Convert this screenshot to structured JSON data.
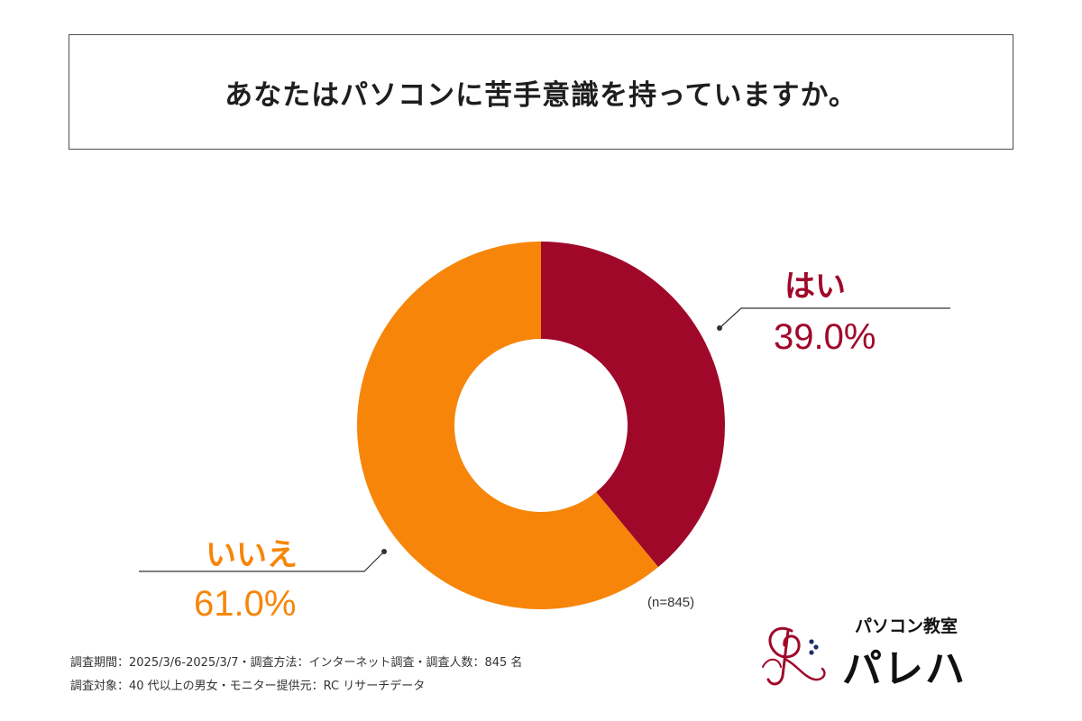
{
  "title": "あなたはパソコンに苦手意識を持っていますか。",
  "colors": {
    "yes": "#a0082a",
    "no": "#f7850a",
    "leader_line": "#333333"
  },
  "chart_data": {
    "type": "pie",
    "donut": true,
    "sample_size_label": "(n=845)",
    "slices": [
      {
        "label": "はい",
        "value": 39.0,
        "value_label": "39.0%"
      },
      {
        "label": "いいえ",
        "value": 61.0,
        "value_label": "61.0%"
      }
    ]
  },
  "footnotes": {
    "line1": "調査期間：2025/3/6-2025/3/7・調査方法：インターネット調査・調査人数：845 名",
    "line2": "調査対象：40 代以上の男女・モニター提供元：RC リサーチデータ"
  },
  "logo": {
    "subtitle": "パソコン教室",
    "name": "パレハ"
  }
}
